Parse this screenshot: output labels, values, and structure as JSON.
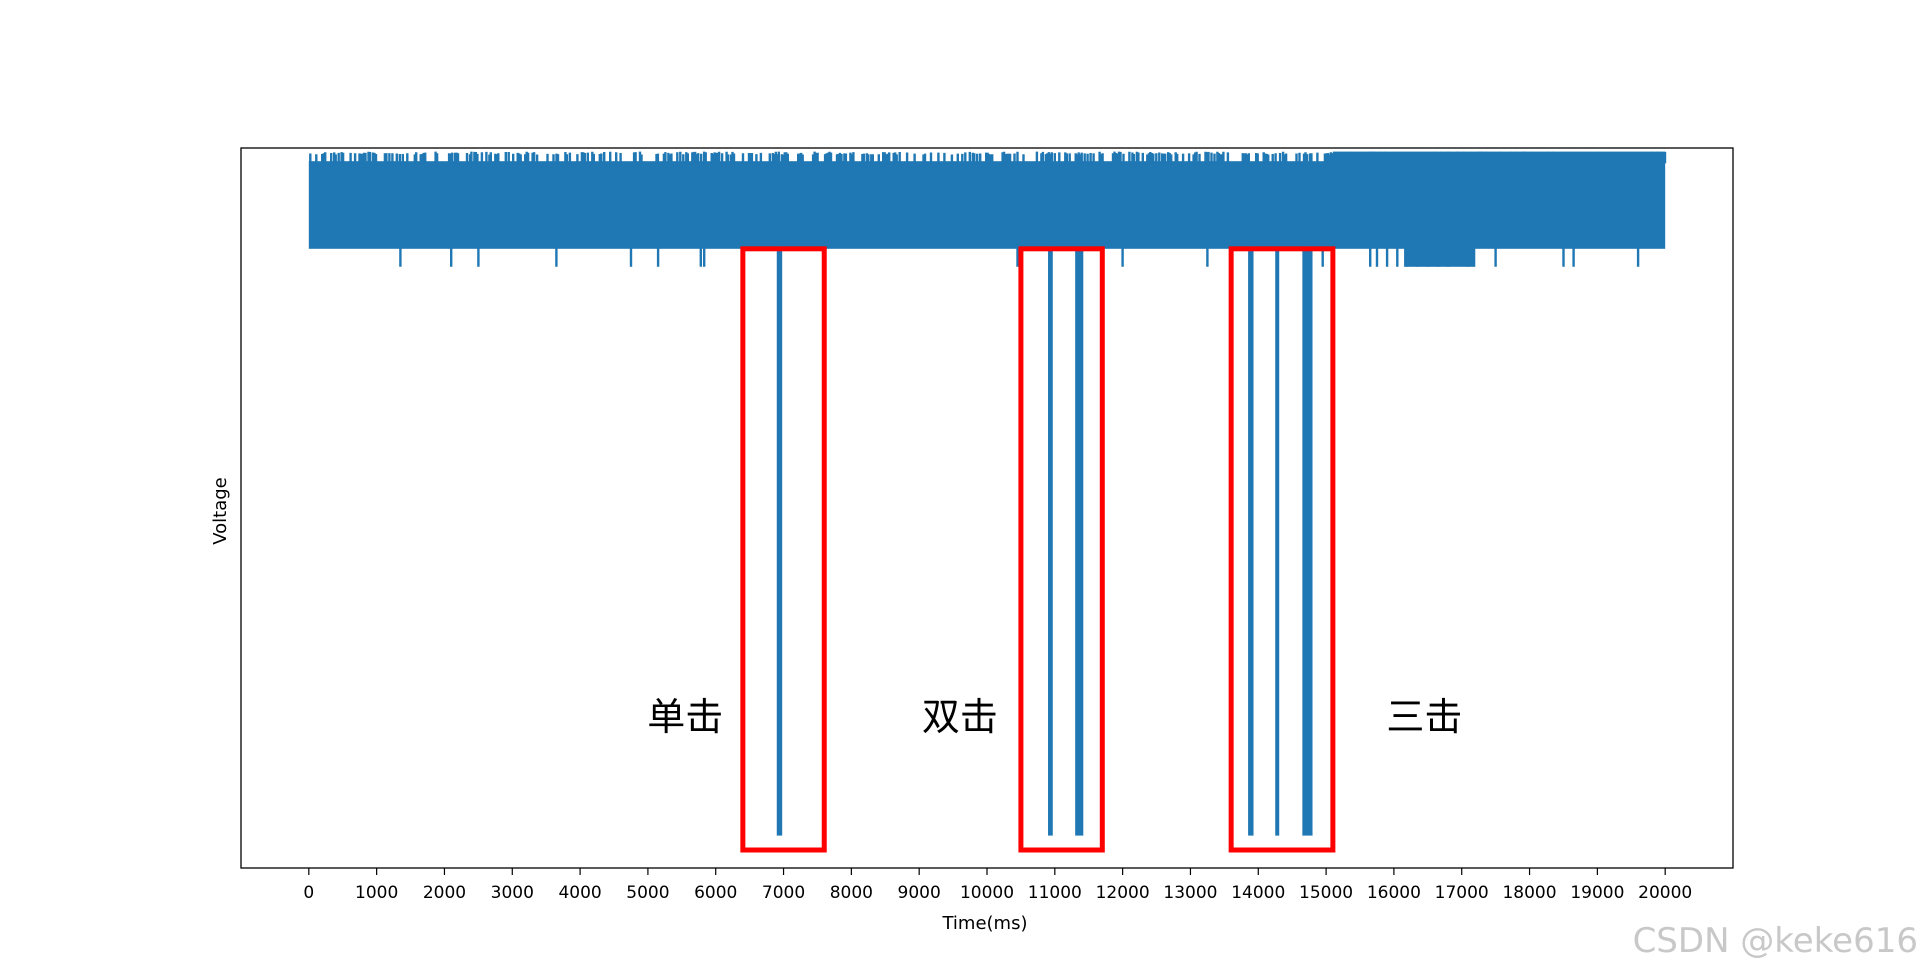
{
  "chart_data": {
    "type": "line",
    "title": "",
    "xlabel": "Time(ms)",
    "ylabel": "Voltage",
    "xlim": [
      -1000,
      21000
    ],
    "ylim": [
      0,
      1
    ],
    "x_ticks": [
      0,
      1000,
      2000,
      3000,
      4000,
      5000,
      6000,
      7000,
      8000,
      9000,
      10000,
      11000,
      12000,
      13000,
      14000,
      15000,
      16000,
      17000,
      18000,
      19000,
      20000
    ],
    "x_tick_labels": [
      "0",
      "1000",
      "2000",
      "3000",
      "4000",
      "5000",
      "6000",
      "7000",
      "8000",
      "9000",
      "10000",
      "11000",
      "12000",
      "13000",
      "14000",
      "15000",
      "16000",
      "17000",
      "18000",
      "19000",
      "20000"
    ],
    "y_ticks_shown": false,
    "grid": false,
    "line_color": "#1f77b4",
    "signal": {
      "x_range": [
        0,
        20000
      ],
      "noise_band": [
        0.86,
        0.99
      ],
      "spike_high": 0.995,
      "spike_low": 0.835
    },
    "dips": [
      {
        "x": [
          6900,
          6980
        ],
        "min": 0.045
      },
      {
        "x": [
          10900,
          10970
        ],
        "min": 0.045
      },
      {
        "x": [
          11300,
          11420
        ],
        "min": 0.045
      },
      {
        "x": [
          13850,
          13930
        ],
        "min": 0.045
      },
      {
        "x": [
          14250,
          14300
        ],
        "min": 0.045
      },
      {
        "x": [
          14650,
          14800
        ],
        "min": 0.045
      }
    ],
    "annotations": [
      {
        "text": "单击",
        "x": 5550,
        "y": 0.21,
        "box": {
          "x": [
            6400,
            7600
          ],
          "y": [
            0.025,
            0.86
          ]
        }
      },
      {
        "text": "双击",
        "x": 9600,
        "y": 0.21,
        "box": {
          "x": [
            10500,
            11700
          ],
          "y": [
            0.025,
            0.86
          ]
        }
      },
      {
        "text": "三击",
        "x": 16450,
        "y": 0.21,
        "box": {
          "x": [
            13600,
            15100
          ],
          "y": [
            0.025,
            0.86
          ]
        }
      }
    ],
    "annotation_box_color": "#ff0000"
  },
  "watermark": "CSDN @keke616"
}
